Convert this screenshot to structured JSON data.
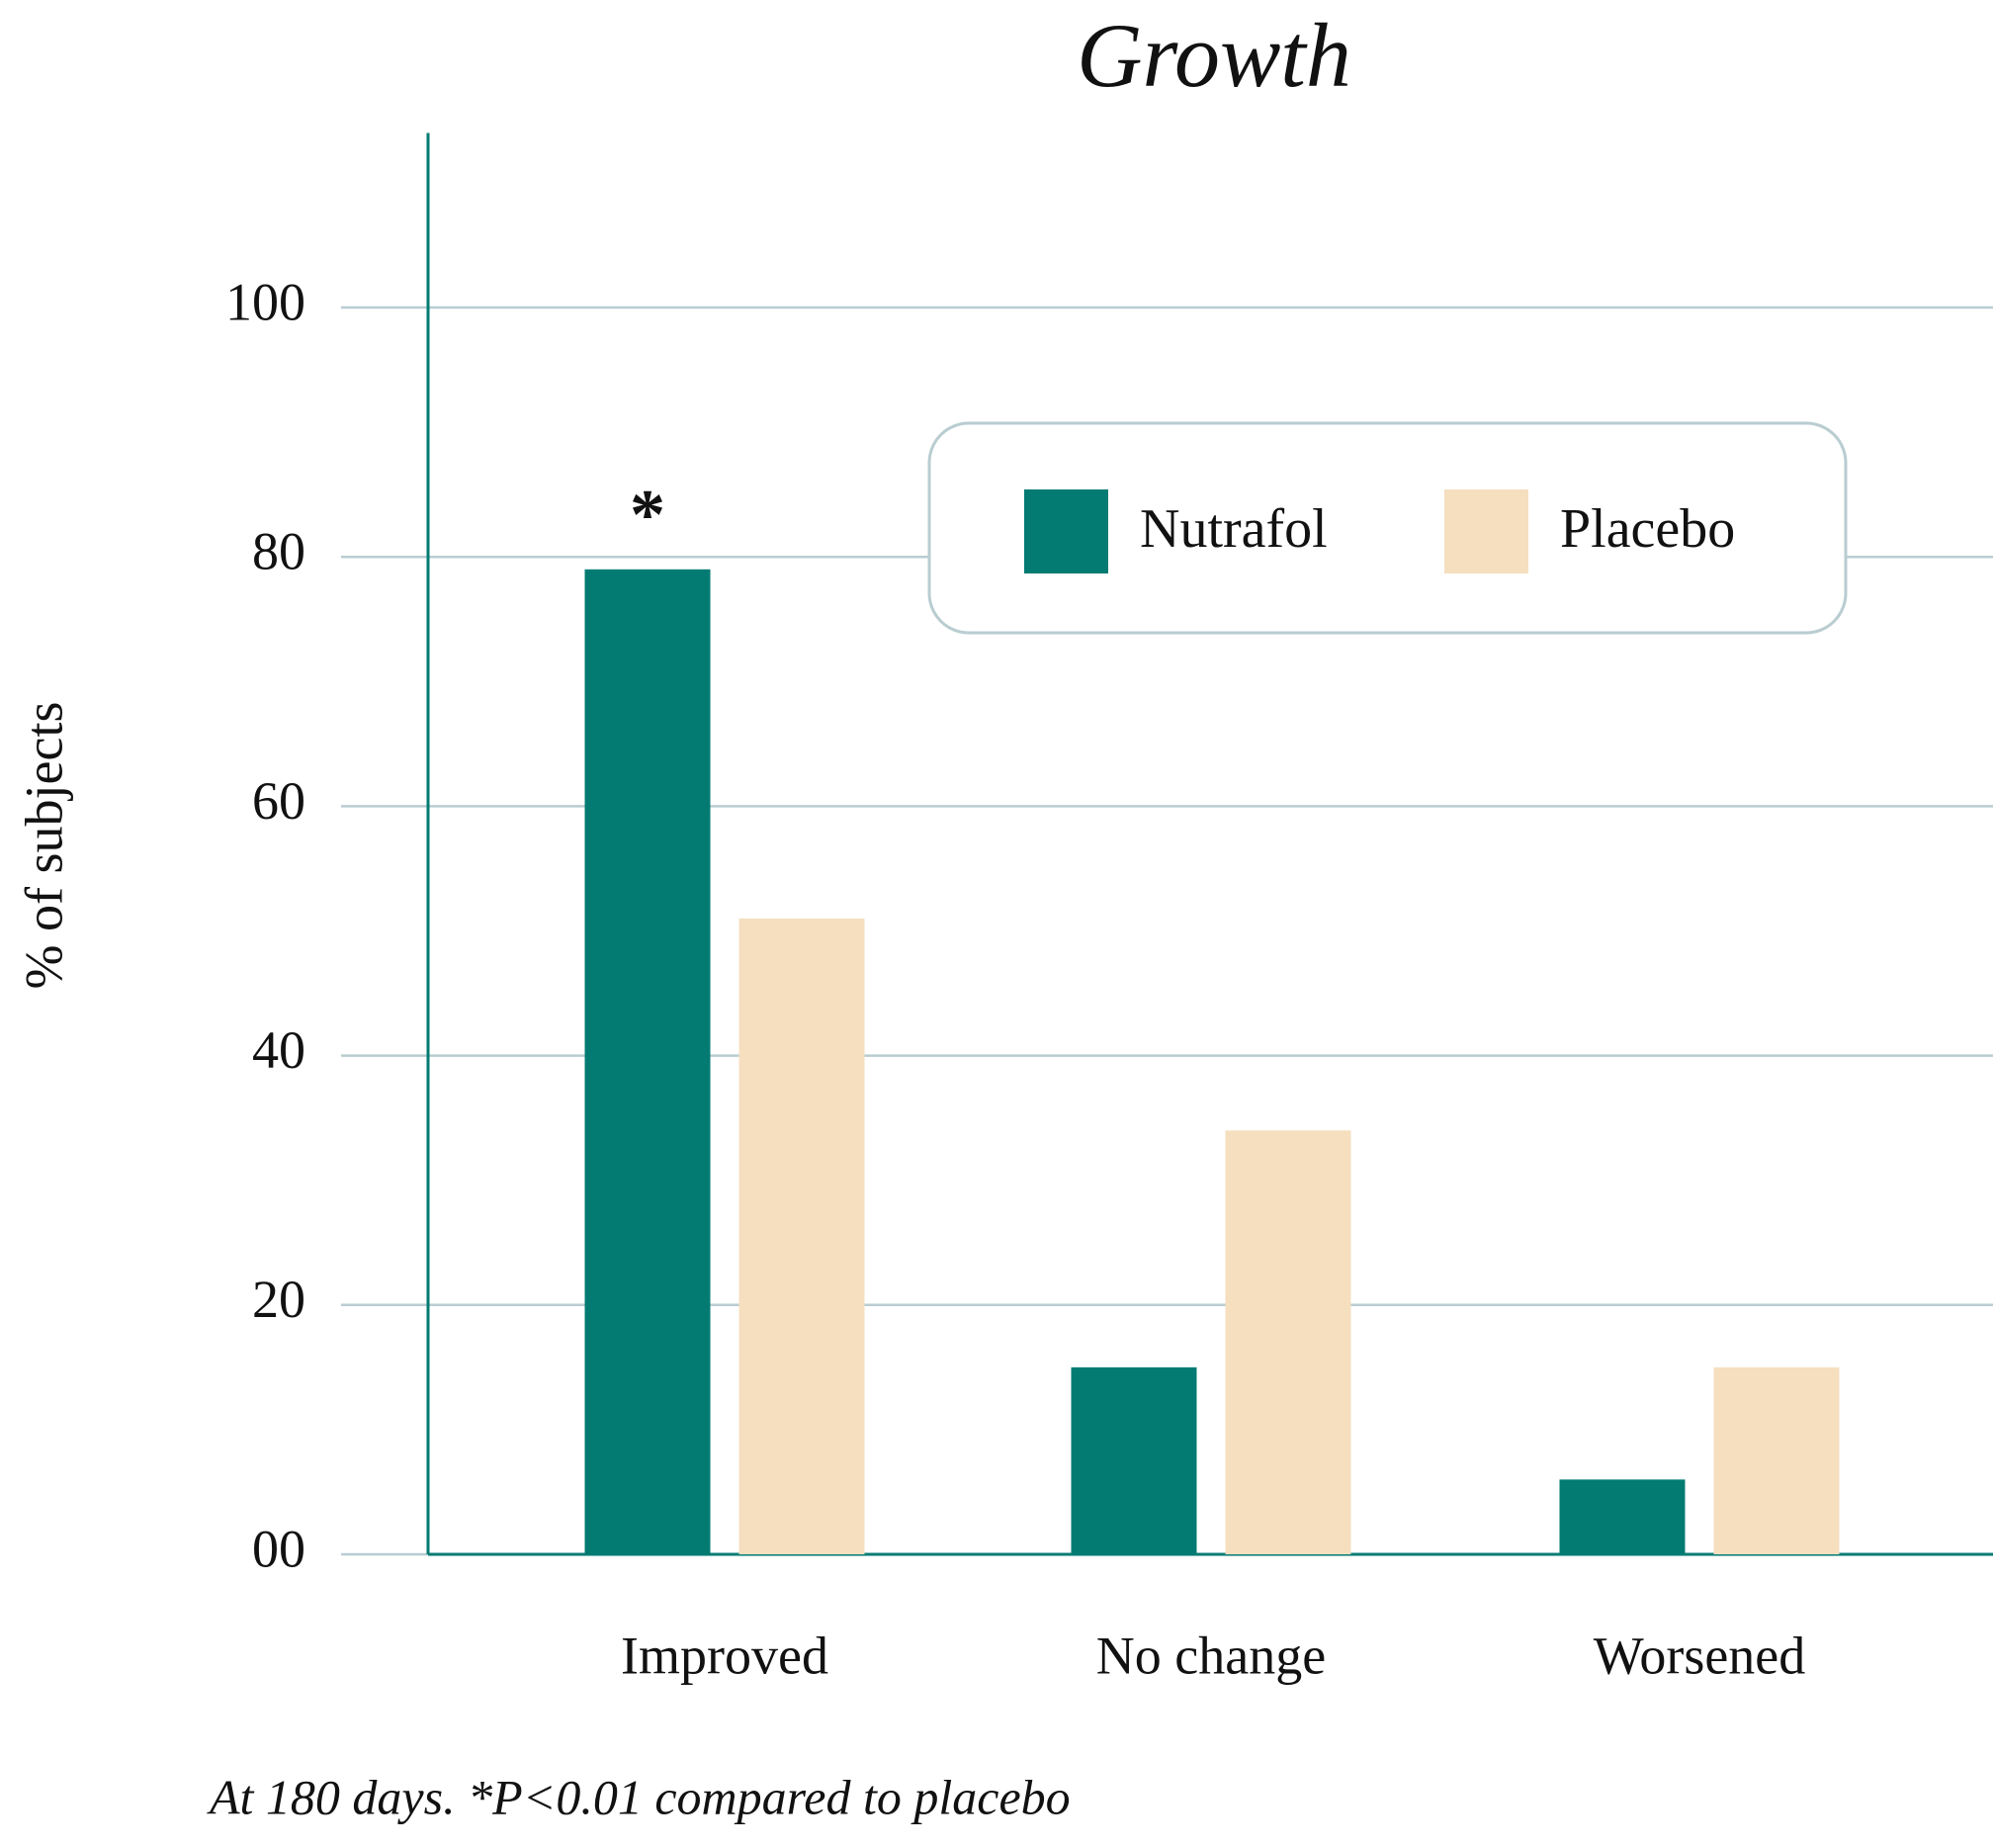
{
  "chart_data": {
    "type": "bar",
    "title": "Growth",
    "y_label": "% of subjects",
    "categories": [
      "Improved",
      "No change",
      "Worsened"
    ],
    "series": [
      {
        "name": "Nutrafol",
        "color": "#037b72",
        "values": [
          79,
          15,
          6
        ]
      },
      {
        "name": "Placebo",
        "color": "#f5dfbf",
        "values": [
          51,
          34,
          15
        ]
      }
    ],
    "ylim": [
      0,
      114
    ],
    "yticks": [
      {
        "value": 0,
        "label": "00"
      },
      20,
      40,
      60,
      80,
      100
    ],
    "grid": true,
    "legend": "top-right",
    "annotation": "*",
    "footnote": "At 180 days. *P<0.01 compared to placebo"
  }
}
